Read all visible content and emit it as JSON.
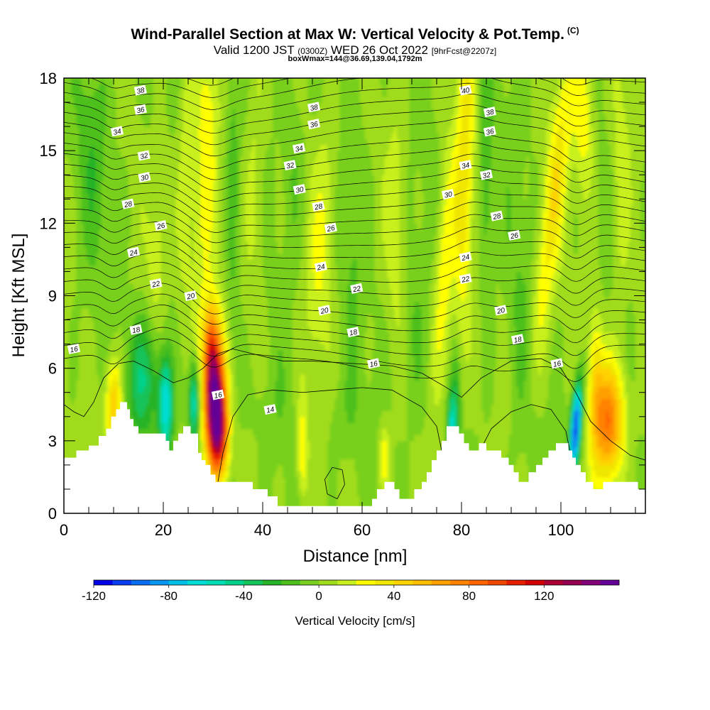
{
  "chart_data": {
    "type": "heatmap",
    "title": "Wind-Parallel Section at Max W: Vertical Velocity & Pot.Temp.",
    "title_mark": "(C)",
    "subtitle_parts": [
      "Valid 1200 JST ",
      "(0300Z)",
      " WED 26 Oct 2022 ",
      "[9hrFcst@2207z]"
    ],
    "subtitle2": "boxWmax=144@36.69,139.04,1792m",
    "xlabel": "Distance [nm]",
    "ylabel": "Height [Kft MSL]",
    "xlim": [
      0,
      117
    ],
    "ylim": [
      0,
      18
    ],
    "x_ticks": [
      "0",
      "20",
      "40",
      "60",
      "80",
      "100"
    ],
    "y_ticks": [
      "0",
      "3",
      "6",
      "9",
      "12",
      "15",
      "18"
    ],
    "colorbar": {
      "label": "Vertical Velocity [cm/s]",
      "min": -120,
      "max": 150,
      "step": 10,
      "tick_labels": [
        "-120",
        "-80",
        "-40",
        "0",
        "40",
        "80",
        "120"
      ],
      "colors": [
        "#0000e6",
        "#0a3cf0",
        "#0a6cf0",
        "#0896f0",
        "#00bee6",
        "#00dcd6",
        "#00dcb4",
        "#00d28c",
        "#14c35a",
        "#28b428",
        "#4ec01e",
        "#78d01e",
        "#a0dc1e",
        "#c8f01e",
        "#ffff00",
        "#f0e600",
        "#ffd200",
        "#ffbe00",
        "#ffa000",
        "#ff8200",
        "#ff6400",
        "#f04600",
        "#e61e00",
        "#d20000",
        "#aa0032",
        "#960050",
        "#820078",
        "#640096"
      ]
    },
    "contour_labels": [
      {
        "x": 2,
        "y": 6.8,
        "label": "16"
      },
      {
        "x": 14.5,
        "y": 7.6,
        "label": "18"
      },
      {
        "x": 25.5,
        "y": 9.0,
        "label": "20"
      },
      {
        "x": 18.5,
        "y": 9.5,
        "label": "22"
      },
      {
        "x": 14,
        "y": 10.8,
        "label": "24"
      },
      {
        "x": 19.5,
        "y": 11.9,
        "label": "26"
      },
      {
        "x": 12.9,
        "y": 12.8,
        "label": "28"
      },
      {
        "x": 16.2,
        "y": 13.9,
        "label": "30"
      },
      {
        "x": 16.1,
        "y": 14.8,
        "label": "32"
      },
      {
        "x": 10.7,
        "y": 15.8,
        "label": "34"
      },
      {
        "x": 15.4,
        "y": 16.7,
        "label": "36"
      },
      {
        "x": 15.4,
        "y": 17.5,
        "label": "38"
      },
      {
        "x": 31,
        "y": 4.9,
        "label": "16"
      },
      {
        "x": 41.5,
        "y": 4.3,
        "label": "14"
      },
      {
        "x": 62.3,
        "y": 6.2,
        "label": "16"
      },
      {
        "x": 58.2,
        "y": 7.5,
        "label": "18"
      },
      {
        "x": 52.4,
        "y": 8.4,
        "label": "20"
      },
      {
        "x": 58.9,
        "y": 9.3,
        "label": "22"
      },
      {
        "x": 51.7,
        "y": 10.2,
        "label": "24"
      },
      {
        "x": 53.7,
        "y": 11.8,
        "label": "26"
      },
      {
        "x": 51.2,
        "y": 12.7,
        "label": "28"
      },
      {
        "x": 47.4,
        "y": 13.4,
        "label": "30"
      },
      {
        "x": 45.5,
        "y": 14.4,
        "label": "32"
      },
      {
        "x": 47.3,
        "y": 15.1,
        "label": "34"
      },
      {
        "x": 50.3,
        "y": 16.1,
        "label": "36"
      },
      {
        "x": 50.3,
        "y": 16.8,
        "label": "38"
      },
      {
        "x": 80.8,
        "y": 17.5,
        "label": "40"
      },
      {
        "x": 85.7,
        "y": 16.6,
        "label": "38"
      },
      {
        "x": 85.7,
        "y": 15.8,
        "label": "36"
      },
      {
        "x": 80.8,
        "y": 14.4,
        "label": "34"
      },
      {
        "x": 85,
        "y": 14.0,
        "label": "32"
      },
      {
        "x": 77.3,
        "y": 13.2,
        "label": "30"
      },
      {
        "x": 87.1,
        "y": 12.3,
        "label": "28"
      },
      {
        "x": 90.6,
        "y": 11.5,
        "label": "26"
      },
      {
        "x": 80.8,
        "y": 10.6,
        "label": "24"
      },
      {
        "x": 80.8,
        "y": 9.7,
        "label": "22"
      },
      {
        "x": 87.9,
        "y": 8.4,
        "label": "20"
      },
      {
        "x": 91.3,
        "y": 7.2,
        "label": "18"
      },
      {
        "x": 99.2,
        "y": 6.2,
        "label": "16"
      }
    ]
  },
  "colors": {
    "terrain": "#ffffff",
    "contour": "#000000"
  }
}
